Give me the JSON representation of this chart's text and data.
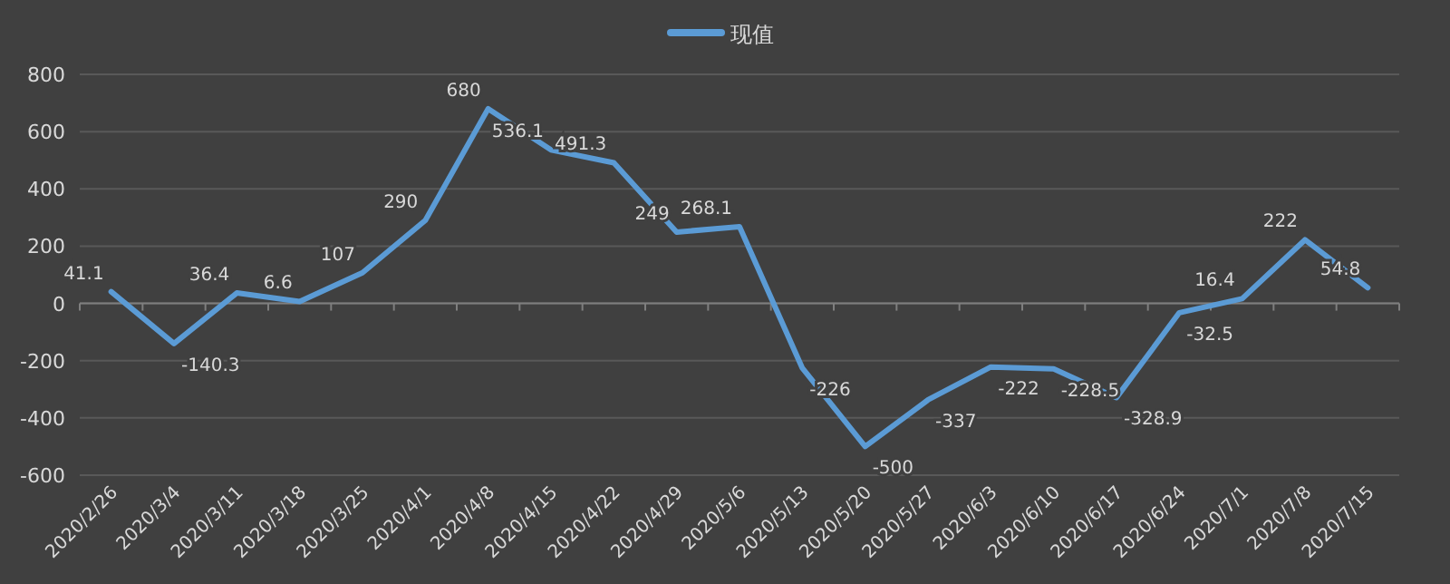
{
  "chart_data": {
    "type": "line",
    "categories": [
      "2020/2/26",
      "2020/3/4",
      "2020/3/11",
      "2020/3/18",
      "2020/3/25",
      "2020/4/1",
      "2020/4/8",
      "2020/4/15",
      "2020/4/22",
      "2020/4/29",
      "2020/5/6",
      "2020/5/13",
      "2020/5/20",
      "2020/5/27",
      "2020/6/3",
      "2020/6/10",
      "2020/6/17",
      "2020/6/24",
      "2020/7/1",
      "2020/7/8",
      "2020/7/15"
    ],
    "series": [
      {
        "name": "现值",
        "color": "#5b9bd5",
        "values": [
          41.1,
          -140.3,
          36.4,
          6.6,
          107,
          290,
          680,
          536.1,
          491.3,
          249,
          268.1,
          -226,
          -500,
          -337,
          -222,
          -228.5,
          -328.9,
          -32.5,
          16.4,
          222,
          54.8
        ]
      }
    ],
    "ylim": [
      -600,
      800
    ],
    "yticks": [
      -600,
      -400,
      -200,
      0,
      200,
      400,
      600,
      800
    ],
    "grid": "y",
    "legend": "top",
    "data_labels": true,
    "marker": "none",
    "line_style": "solid"
  }
}
